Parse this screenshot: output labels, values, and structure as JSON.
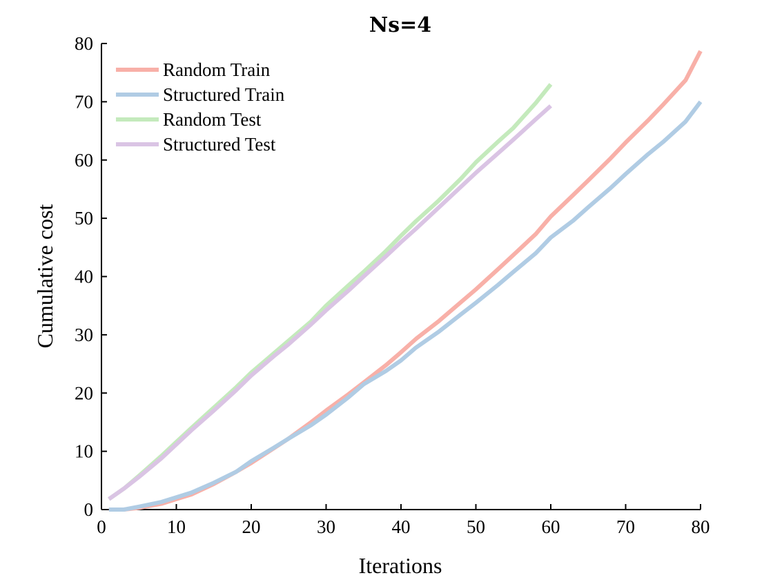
{
  "chart_data": {
    "type": "line",
    "title": "Ns=4",
    "xlabel": "Iterations",
    "ylabel": "Cumulative cost",
    "xlim": [
      0,
      80
    ],
    "ylim": [
      0,
      80
    ],
    "xticks": [
      0,
      10,
      20,
      30,
      40,
      50,
      60,
      70,
      80
    ],
    "yticks": [
      0,
      10,
      20,
      30,
      40,
      50,
      60,
      70,
      80
    ],
    "grid": false,
    "legend_position": "top-left",
    "series": [
      {
        "name": "Random Train",
        "color": "#f8b0a8",
        "x": [
          1,
          3,
          5,
          8,
          10,
          12,
          15,
          18,
          20,
          23,
          25,
          28,
          30,
          33,
          35,
          38,
          40,
          42,
          45,
          48,
          50,
          53,
          55,
          58,
          60,
          63,
          65,
          68,
          70,
          73,
          75,
          78,
          80
        ],
        "y": [
          0,
          0,
          0.3,
          1,
          1.8,
          2.6,
          4.4,
          6.5,
          8,
          10.5,
          12.2,
          15,
          17,
          19.8,
          21.8,
          24.8,
          27,
          29.3,
          32.3,
          35.6,
          37.8,
          41.3,
          43.7,
          47.3,
          50.3,
          54,
          56.5,
          60.3,
          63,
          66.8,
          69.5,
          73.7,
          78.7
        ]
      },
      {
        "name": "Structured Train",
        "color": "#b0cce4",
        "x": [
          1,
          3,
          5,
          8,
          10,
          12,
          15,
          18,
          20,
          23,
          25,
          28,
          30,
          33,
          35,
          38,
          40,
          42,
          45,
          48,
          50,
          53,
          55,
          58,
          60,
          63,
          65,
          68,
          70,
          73,
          75,
          78,
          80
        ],
        "y": [
          0,
          0,
          0.5,
          1.3,
          2.1,
          2.9,
          4.6,
          6.5,
          8.3,
          10.6,
          12.2,
          14.5,
          16.3,
          19.3,
          21.5,
          23.8,
          25.6,
          27.8,
          30.5,
          33.5,
          35.5,
          38.6,
          40.8,
          44,
          46.7,
          49.6,
          51.9,
          55.2,
          57.6,
          61,
          63.1,
          66.6,
          70
        ]
      },
      {
        "name": "Random Test",
        "color": "#c4eabc",
        "x": [
          1,
          3,
          5,
          8,
          10,
          12,
          15,
          18,
          20,
          23,
          25,
          28,
          30,
          33,
          35,
          38,
          40,
          42,
          45,
          48,
          50,
          53,
          55,
          58,
          60
        ],
        "y": [
          1.8,
          3.6,
          5.8,
          9.2,
          11.6,
          14,
          17.5,
          21,
          23.5,
          26.8,
          29,
          32.3,
          35,
          38.5,
          40.8,
          44.4,
          47,
          49.5,
          53,
          56.8,
          59.6,
          63.2,
          65.5,
          69.8,
          73
        ]
      },
      {
        "name": "Structured Test",
        "color": "#dac4e4",
        "x": [
          1,
          3,
          5,
          8,
          10,
          12,
          15,
          18,
          20,
          23,
          25,
          28,
          30,
          33,
          35,
          38,
          40,
          42,
          45,
          48,
          50,
          53,
          55,
          58,
          60
        ],
        "y": [
          1.8,
          3.6,
          5.6,
          8.8,
          11.2,
          13.6,
          17,
          20.5,
          23,
          26.3,
          28.4,
          31.8,
          34.2,
          37.6,
          40,
          43.5,
          45.9,
          48.2,
          51.8,
          55.4,
          57.8,
          61.2,
          63.5,
          67,
          69.3
        ]
      }
    ]
  }
}
